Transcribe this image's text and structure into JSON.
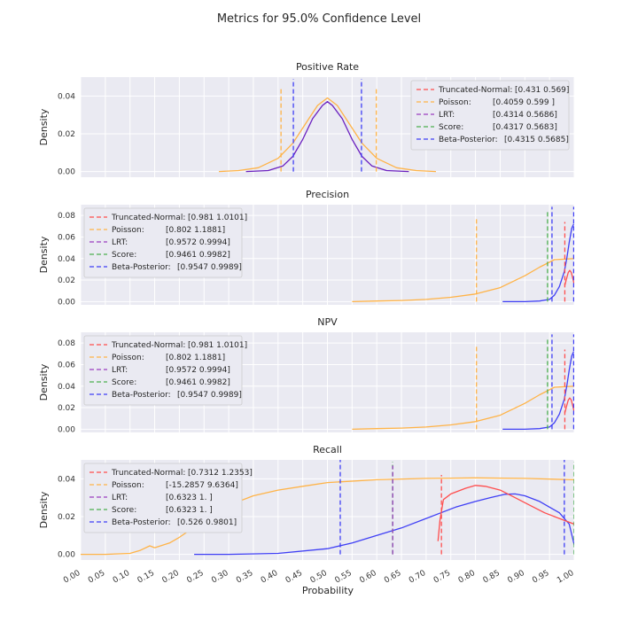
{
  "figure_title": "Metrics for 95.0% Confidence Level",
  "chart_data": {
    "type": "line",
    "title": "Metrics for 95.0% Confidence Level",
    "xlabel": "Probability",
    "xlim": [
      0.0,
      1.0
    ],
    "xticks": [
      "0.00",
      "0.05",
      "0.10",
      "0.15",
      "0.20",
      "0.25",
      "0.30",
      "0.35",
      "0.40",
      "0.45",
      "0.50",
      "0.55",
      "0.60",
      "0.65",
      "0.70",
      "0.75",
      "0.80",
      "0.85",
      "0.90",
      "0.95",
      "1.00"
    ],
    "colors": {
      "Truncated-Normal": "#ff4d4d",
      "Poisson": "#ffb347",
      "LRT": "#9b3fc0",
      "Score": "#4caf50",
      "Beta-Posterior": "#3f3ff5",
      "overlap": "#6a1fbf"
    },
    "panels": [
      {
        "title": "Positive Rate",
        "ylabel": "Density",
        "ylim": [
          -0.003,
          0.05
        ],
        "yticks": [
          "0.00",
          "0.02",
          "0.04"
        ],
        "legend_loc": "upper right",
        "legend": [
          {
            "method": "Truncated-Normal",
            "label": "Truncated-Normal:",
            "interval": "[0.431 0.569]"
          },
          {
            "method": "Poisson",
            "label": "Poisson:",
            "interval": "[0.4059 0.599 ]"
          },
          {
            "method": "LRT",
            "label": "LRT:",
            "interval": "[0.4314 0.5686]"
          },
          {
            "method": "Score",
            "label": "Score:",
            "interval": "[0.4317 0.5683]"
          },
          {
            "method": "Beta-Posterior",
            "label": "Beta-Posterior:",
            "interval": "[0.4315 0.5685]"
          }
        ],
        "vlines": [
          {
            "method": "Poisson",
            "x": [
              0.406,
              0.599
            ],
            "ymax": 0.044
          },
          {
            "method": "Beta-Posterior",
            "x": [
              0.431,
              0.569
            ],
            "ymax": 0.049
          }
        ],
        "curves": [
          {
            "method": "Poisson",
            "x": [
              0.28,
              0.32,
              0.36,
              0.4,
              0.43,
              0.46,
              0.48,
              0.5,
              0.52,
              0.54,
              0.57,
              0.6,
              0.64,
              0.68,
              0.72
            ],
            "y": [
              0.0,
              0.0005,
              0.002,
              0.007,
              0.015,
              0.027,
              0.035,
              0.039,
              0.035,
              0.027,
              0.015,
              0.007,
              0.002,
              0.0005,
              0.0
            ]
          },
          {
            "method": "overlap",
            "x": [
              0.335,
              0.38,
              0.41,
              0.43,
              0.45,
              0.47,
              0.49,
              0.5,
              0.51,
              0.53,
              0.55,
              0.57,
              0.59,
              0.62,
              0.665
            ],
            "y": [
              0.0,
              0.0005,
              0.003,
              0.008,
              0.017,
              0.028,
              0.035,
              0.037,
              0.035,
              0.028,
              0.017,
              0.008,
              0.003,
              0.0005,
              0.0
            ]
          }
        ]
      },
      {
        "title": "Precision",
        "ylabel": "Density",
        "ylim": [
          -0.003,
          0.09
        ],
        "yticks": [
          "0.00",
          "0.02",
          "0.04",
          "0.06",
          "0.08"
        ],
        "legend_loc": "upper left",
        "legend": [
          {
            "method": "Truncated-Normal",
            "label": "Truncated-Normal:",
            "interval": "[0.981  1.0101]"
          },
          {
            "method": "Poisson",
            "label": "Poisson:",
            "interval": "[0.802  1.1881]"
          },
          {
            "method": "LRT",
            "label": "LRT:",
            "interval": "[0.9572 0.9994]"
          },
          {
            "method": "Score",
            "label": "Score:",
            "interval": "[0.9461 0.9982]"
          },
          {
            "method": "Beta-Posterior",
            "label": "Beta-Posterior:",
            "interval": "[0.9547 0.9989]"
          }
        ],
        "vlines": [
          {
            "method": "Poisson",
            "x": [
              0.802
            ],
            "ymax": 0.078
          },
          {
            "method": "Score",
            "x": [
              0.946
            ],
            "ymax": 0.085
          },
          {
            "method": "Beta-Posterior",
            "x": [
              0.955,
              0.999
            ],
            "ymax": 0.088
          },
          {
            "method": "Truncated-Normal",
            "x": [
              0.981
            ],
            "ymax": 0.074
          }
        ],
        "curves": [
          {
            "method": "Poisson",
            "x": [
              0.55,
              0.6,
              0.65,
              0.7,
              0.75,
              0.8,
              0.85,
              0.9,
              0.93,
              0.96,
              1.0
            ],
            "y": [
              0.0,
              0.0005,
              0.001,
              0.002,
              0.004,
              0.007,
              0.013,
              0.024,
              0.032,
              0.039,
              0.04
            ]
          },
          {
            "method": "Beta-Posterior",
            "x": [
              0.855,
              0.9,
              0.93,
              0.95,
              0.96,
              0.97,
              0.98,
              0.985,
              0.99,
              0.995,
              0.999
            ],
            "y": [
              0.0,
              0.0,
              0.0005,
              0.002,
              0.006,
              0.014,
              0.028,
              0.04,
              0.055,
              0.068,
              0.072
            ]
          },
          {
            "method": "Truncated-Normal",
            "x": [
              0.981,
              0.985,
              0.988,
              0.991,
              0.994,
              0.997,
              1.0
            ],
            "y": [
              0.015,
              0.022,
              0.027,
              0.029,
              0.027,
              0.022,
              0.016
            ]
          }
        ]
      },
      {
        "title": "NPV",
        "ylabel": "Density",
        "ylim": [
          -0.003,
          0.09
        ],
        "yticks": [
          "0.00",
          "0.02",
          "0.04",
          "0.06",
          "0.08"
        ],
        "legend_loc": "upper left",
        "legend": [
          {
            "method": "Truncated-Normal",
            "label": "Truncated-Normal:",
            "interval": "[0.981  1.0101]"
          },
          {
            "method": "Poisson",
            "label": "Poisson:",
            "interval": "[0.802  1.1881]"
          },
          {
            "method": "LRT",
            "label": "LRT:",
            "interval": "[0.9572 0.9994]"
          },
          {
            "method": "Score",
            "label": "Score:",
            "interval": "[0.9461 0.9982]"
          },
          {
            "method": "Beta-Posterior",
            "label": "Beta-Posterior:",
            "interval": "[0.9547 0.9989]"
          }
        ],
        "vlines": [
          {
            "method": "Poisson",
            "x": [
              0.802
            ],
            "ymax": 0.078
          },
          {
            "method": "Score",
            "x": [
              0.946
            ],
            "ymax": 0.085
          },
          {
            "method": "Beta-Posterior",
            "x": [
              0.955,
              0.999
            ],
            "ymax": 0.088
          },
          {
            "method": "Truncated-Normal",
            "x": [
              0.981
            ],
            "ymax": 0.074
          }
        ],
        "curves": [
          {
            "method": "Poisson",
            "x": [
              0.55,
              0.6,
              0.65,
              0.7,
              0.75,
              0.8,
              0.85,
              0.9,
              0.93,
              0.96,
              1.0
            ],
            "y": [
              0.0,
              0.0005,
              0.001,
              0.002,
              0.004,
              0.007,
              0.013,
              0.024,
              0.032,
              0.039,
              0.04
            ]
          },
          {
            "method": "Beta-Posterior",
            "x": [
              0.855,
              0.9,
              0.93,
              0.95,
              0.96,
              0.97,
              0.98,
              0.985,
              0.99,
              0.995,
              0.999
            ],
            "y": [
              0.0,
              0.0,
              0.0005,
              0.002,
              0.006,
              0.014,
              0.028,
              0.04,
              0.055,
              0.068,
              0.072
            ]
          },
          {
            "method": "Truncated-Normal",
            "x": [
              0.981,
              0.985,
              0.988,
              0.991,
              0.994,
              0.997,
              1.0
            ],
            "y": [
              0.015,
              0.022,
              0.027,
              0.029,
              0.027,
              0.022,
              0.016
            ]
          }
        ]
      },
      {
        "title": "Recall",
        "ylabel": "Density",
        "ylim": [
          -0.003,
          0.05
        ],
        "yticks": [
          "0.00",
          "0.02",
          "0.04"
        ],
        "legend_loc": "upper left",
        "legend": [
          {
            "method": "Truncated-Normal",
            "label": "Truncated-Normal:",
            "interval": "[0.7312 1.2353]"
          },
          {
            "method": "Poisson",
            "label": "Poisson:",
            "interval": "[-15.2857   9.6364]"
          },
          {
            "method": "LRT",
            "label": "LRT:",
            "interval": "[0.6323 1.    ]"
          },
          {
            "method": "Score",
            "label": "Score:",
            "interval": "[0.6323 1.    ]"
          },
          {
            "method": "Beta-Posterior",
            "label": "Beta-Posterior:",
            "interval": "[0.526  0.9801]"
          }
        ],
        "vlines": [
          {
            "method": "Beta-Posterior",
            "x": [
              0.526,
              0.98
            ],
            "ymax": 0.05
          },
          {
            "method": "Score",
            "x": [
              0.632,
              1.0
            ],
            "ymax": 0.049
          },
          {
            "method": "LRT",
            "x": [
              0.6323
            ],
            "ymax": 0.047
          },
          {
            "method": "Truncated-Normal",
            "x": [
              0.731
            ],
            "ymax": 0.042
          }
        ],
        "curves": [
          {
            "method": "Poisson",
            "x": [
              0.0,
              0.05,
              0.1,
              0.12,
              0.14,
              0.15,
              0.18,
              0.2,
              0.25,
              0.3,
              0.35,
              0.4,
              0.45,
              0.5,
              0.6,
              0.7,
              0.8,
              0.9,
              1.0
            ],
            "y": [
              0.0,
              0.0,
              0.0005,
              0.002,
              0.0045,
              0.0035,
              0.006,
              0.009,
              0.018,
              0.026,
              0.031,
              0.034,
              0.036,
              0.038,
              0.0395,
              0.0402,
              0.0405,
              0.0402,
              0.0395
            ]
          },
          {
            "method": "Beta-Posterior",
            "x": [
              0.23,
              0.3,
              0.4,
              0.5,
              0.55,
              0.6,
              0.65,
              0.7,
              0.73,
              0.76,
              0.8,
              0.83,
              0.86,
              0.88,
              0.9,
              0.93,
              0.95,
              0.97,
              0.99,
              1.0
            ],
            "y": [
              0.0,
              0.0,
              0.0005,
              0.003,
              0.006,
              0.01,
              0.014,
              0.019,
              0.022,
              0.025,
              0.028,
              0.03,
              0.0318,
              0.032,
              0.031,
              0.028,
              0.025,
              0.022,
              0.016,
              0.005
            ]
          },
          {
            "method": "Truncated-Normal",
            "x": [
              0.724,
              0.728,
              0.735,
              0.75,
              0.78,
              0.8,
              0.82,
              0.85,
              0.88,
              0.91,
              0.94,
              0.97,
              1.0
            ],
            "y": [
              0.007,
              0.018,
              0.029,
              0.032,
              0.035,
              0.0365,
              0.036,
              0.034,
              0.03,
              0.026,
              0.022,
              0.019,
              0.016
            ]
          }
        ]
      }
    ]
  }
}
